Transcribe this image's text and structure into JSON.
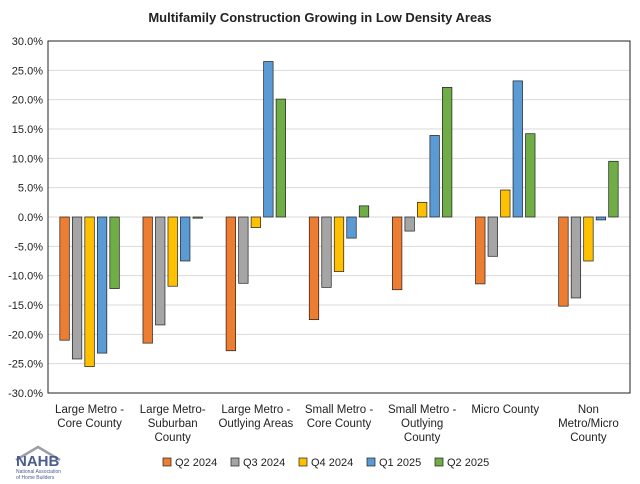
{
  "chart_data": {
    "type": "bar",
    "title": "Multifamily Construction Growing in Low Density Areas",
    "xlabel": "",
    "ylabel": "",
    "ylim": [
      -30,
      30
    ],
    "ytick_step": 5,
    "ytick_labels": [
      "-30.0%",
      "-25.0%",
      "-20.0%",
      "-15.0%",
      "-10.0%",
      "-5.0%",
      "0.0%",
      "5.0%",
      "10.0%",
      "15.0%",
      "20.0%",
      "25.0%",
      "30.0%"
    ],
    "grid": true,
    "legend_position": "bottom",
    "categories": [
      [
        "Large Metro -",
        "Core County"
      ],
      [
        "Large Metro-",
        "Suburban",
        "County"
      ],
      [
        "Large Metro -",
        "Outlying Areas"
      ],
      [
        "Small Metro -",
        "Core County"
      ],
      [
        "Small Metro -",
        "Outlying",
        "County"
      ],
      [
        "Micro County"
      ],
      [
        "Non",
        "Metro/Micro",
        "County"
      ]
    ],
    "series": [
      {
        "name": "Q2 2024",
        "color": "#ed7d31",
        "values": [
          -21.0,
          -21.5,
          -22.8,
          -17.5,
          -12.4,
          -11.4,
          -15.2
        ]
      },
      {
        "name": "Q3 2024",
        "color": "#a5a5a5",
        "values": [
          -24.2,
          -18.4,
          -11.3,
          -12.0,
          -2.4,
          -6.7,
          -13.8
        ]
      },
      {
        "name": "Q4 2024",
        "color": "#ffc000",
        "values": [
          -25.5,
          -11.8,
          -1.8,
          -9.3,
          2.5,
          4.6,
          -7.5
        ]
      },
      {
        "name": "Q1 2025",
        "color": "#5b9bd5",
        "values": [
          -23.2,
          -7.5,
          26.5,
          -3.6,
          13.9,
          23.2,
          -0.5
        ]
      },
      {
        "name": "Q2 2025",
        "color": "#70ad47",
        "values": [
          -12.2,
          -0.2,
          20.1,
          1.9,
          22.1,
          14.2,
          9.5
        ]
      }
    ]
  },
  "logo": {
    "text": "NAHB",
    "subtitle_lines": [
      "National Association",
      "of Home Builders"
    ]
  }
}
